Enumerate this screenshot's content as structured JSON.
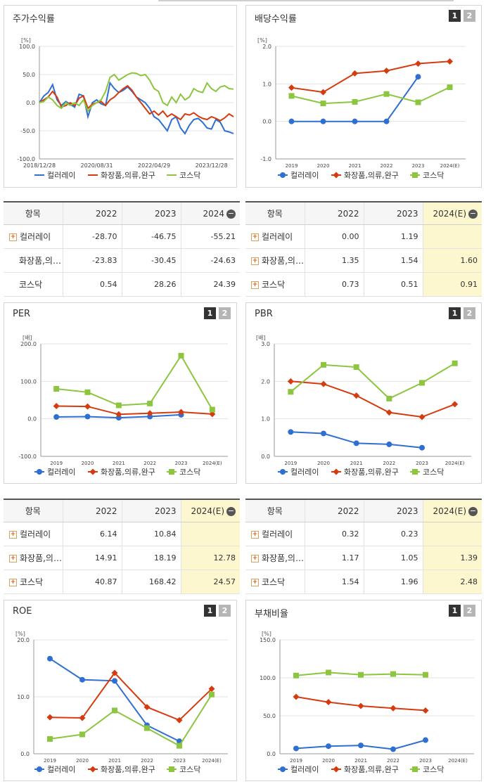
{
  "colors": {
    "s1": "#2e6fd1",
    "s2": "#d63b10",
    "s3": "#8cc63f"
  },
  "legend_names": [
    "컬러레이",
    "화장품,의류,완구",
    "코스닥"
  ],
  "charts": {
    "stock": {
      "title": "주가수익률",
      "unit": "[%]",
      "chart_data": {
        "type": "line",
        "title": "주가수익률",
        "ylabel": "[%]",
        "ylim": [
          -100,
          100
        ],
        "yticks": [
          "100.0",
          "50.0",
          "0.0",
          "-50.0",
          "-100.0"
        ],
        "xticks": [
          "2018/12/28",
          "2020/08/31",
          "2022/04/29",
          "2023/12/28"
        ],
        "series": [
          {
            "name": "컬러레이",
            "values": [
              0,
              12,
              18,
              32,
              5,
              -5,
              2,
              -3,
              -8,
              15,
              12,
              -25,
              0,
              5,
              -2,
              -5,
              35,
              25,
              18,
              22,
              28,
              20,
              10,
              5,
              0,
              -10,
              -25,
              -30,
              -40,
              -50,
              -30,
              -25,
              -45,
              -55,
              -40,
              -30,
              -28,
              -35,
              -45,
              -47,
              -30,
              -35,
              -50,
              -52,
              -55
            ]
          },
          {
            "name": "화장품,의류,완구",
            "values": [
              0,
              5,
              10,
              20,
              10,
              -8,
              -5,
              0,
              -5,
              8,
              12,
              -10,
              -3,
              0,
              2,
              -5,
              5,
              10,
              18,
              25,
              30,
              22,
              10,
              0,
              -10,
              -20,
              -15,
              -22,
              -15,
              -25,
              -20,
              -25,
              -30,
              -20,
              -22,
              -18,
              -24,
              -28,
              -30,
              -25,
              -28,
              -32,
              -27,
              -20,
              -25
            ]
          },
          {
            "name": "코스닥",
            "values": [
              0,
              2,
              10,
              5,
              -5,
              -10,
              0,
              -5,
              0,
              -5,
              5,
              -15,
              -5,
              0,
              5,
              20,
              45,
              50,
              40,
              45,
              50,
              53,
              52,
              48,
              50,
              40,
              25,
              20,
              0,
              -5,
              10,
              0,
              15,
              5,
              10,
              25,
              20,
              18,
              35,
              25,
              20,
              28,
              30,
              25,
              24
            ]
          }
        ]
      }
    },
    "dividend": {
      "title": "배당수익률",
      "unit": "[%]",
      "chart_data": {
        "type": "line",
        "title": "배당수익률",
        "ylabel": "[%]",
        "ylim": [
          -1,
          2
        ],
        "yticks": [
          "2.0",
          "1.0",
          "0.0",
          "-1.0"
        ],
        "categories": [
          "2019",
          "2020",
          "2021",
          "2022",
          "2023",
          "2024(E)"
        ],
        "series": [
          {
            "name": "컬러레이",
            "values": [
              0.0,
              0.0,
              0.0,
              0.0,
              1.19,
              null
            ]
          },
          {
            "name": "화장품,의류,완구",
            "values": [
              0.9,
              0.78,
              1.28,
              1.35,
              1.54,
              1.6
            ]
          },
          {
            "name": "코스닥",
            "values": [
              0.68,
              0.48,
              0.52,
              0.73,
              0.51,
              0.91
            ]
          }
        ]
      }
    },
    "per": {
      "title": "PER",
      "unit": "[배]",
      "chart_data": {
        "type": "line",
        "title": "PER",
        "ylabel": "[배]",
        "ylim": [
          -100,
          200
        ],
        "yticks": [
          "200.0",
          "100.0",
          "0.0",
          "-100.0"
        ],
        "categories": [
          "2019",
          "2020",
          "2021",
          "2022",
          "2023",
          "2024(E)"
        ],
        "series": [
          {
            "name": "컬러레이",
            "values": [
              5,
              6,
              3,
              6.14,
              10.84,
              null
            ]
          },
          {
            "name": "화장품,의류,완구",
            "values": [
              34,
              33,
              12,
              14.91,
              18.19,
              12.78
            ]
          },
          {
            "name": "코스닥",
            "values": [
              80,
              71,
              36,
              40.87,
              168.42,
              24.57
            ]
          }
        ]
      }
    },
    "pbr": {
      "title": "PBR",
      "unit": "[배]",
      "chart_data": {
        "type": "line",
        "title": "PBR",
        "ylabel": "[배]",
        "ylim": [
          0,
          3
        ],
        "yticks": [
          "3.0",
          "2.0",
          "1.0",
          "0.0"
        ],
        "categories": [
          "2019",
          "2020",
          "2021",
          "2022",
          "2023",
          "2024(E)"
        ],
        "series": [
          {
            "name": "컬러레이",
            "values": [
              0.65,
              0.61,
              0.35,
              0.32,
              0.23,
              null
            ]
          },
          {
            "name": "화장품,의류,완구",
            "values": [
              2.0,
              1.93,
              1.62,
              1.17,
              1.05,
              1.39
            ]
          },
          {
            "name": "코스닥",
            "values": [
              1.72,
              2.44,
              2.38,
              1.54,
              1.96,
              2.48
            ]
          }
        ]
      }
    },
    "roe": {
      "title": "ROE",
      "unit": "[%]",
      "chart_data": {
        "type": "line",
        "title": "ROE",
        "ylabel": "[%]",
        "ylim": [
          0,
          20
        ],
        "yticks": [
          "20.0",
          "10.0",
          "0.0"
        ],
        "categories": [
          "2019",
          "2020",
          "2021",
          "2022",
          "2023",
          "2024(E)"
        ],
        "series": [
          {
            "name": "컬러레이",
            "values": [
              16.7,
              13.0,
              12.8,
              5.0,
              2.2,
              null
            ]
          },
          {
            "name": "화장품,의류,완구",
            "values": [
              6.4,
              6.3,
              14.2,
              8.2,
              5.9,
              11.4
            ]
          },
          {
            "name": "코스닥",
            "values": [
              2.6,
              3.4,
              7.6,
              4.5,
              1.4,
              10.4
            ]
          }
        ]
      }
    },
    "debt": {
      "title": "부채비율",
      "unit": "[%]",
      "chart_data": {
        "type": "line",
        "title": "부채비율",
        "ylabel": "[%]",
        "ylim": [
          0,
          150
        ],
        "yticks": [
          "150.0",
          "100.0",
          "50.0",
          "0.0"
        ],
        "categories": [
          "2019",
          "2020",
          "2021",
          "2022",
          "2023",
          "2024(E)"
        ],
        "series": [
          {
            "name": "컬러레이",
            "values": [
              7,
              10,
              11,
              6,
              18,
              null
            ]
          },
          {
            "name": "화장품,의류,완구",
            "values": [
              75,
              68,
              63,
              60,
              57,
              null
            ]
          },
          {
            "name": "코스닥",
            "values": [
              103,
              107,
              104,
              105,
              104,
              null
            ]
          }
        ]
      }
    }
  },
  "tables": {
    "stock": {
      "headers": [
        "항목",
        "2022",
        "2023",
        "2024"
      ],
      "rows": [
        {
          "name": "컬러레이",
          "plus": true,
          "v": [
            "-28.70",
            "-46.75",
            "-55.21"
          ]
        },
        {
          "name": "화장품,의류,완구",
          "display": "화장품,의…",
          "plus": false,
          "v": [
            "-23.83",
            "-30.45",
            "-24.63"
          ]
        },
        {
          "name": "코스닥",
          "plus": false,
          "v": [
            "0.54",
            "28.26",
            "24.39"
          ]
        }
      ]
    },
    "dividend": {
      "headers": [
        "항목",
        "2022",
        "2023",
        "2024(E)"
      ],
      "rows": [
        {
          "name": "컬러레이",
          "plus": true,
          "v": [
            "0.00",
            "1.19",
            ""
          ]
        },
        {
          "name": "화장품,의류,완구",
          "display": "화장품,의…",
          "plus": true,
          "v": [
            "1.35",
            "1.54",
            "1.60"
          ]
        },
        {
          "name": "코스닥",
          "plus": true,
          "v": [
            "0.73",
            "0.51",
            "0.91"
          ]
        }
      ]
    },
    "per": {
      "headers": [
        "항목",
        "2022",
        "2023",
        "2024(E)"
      ],
      "rows": [
        {
          "name": "컬러레이",
          "plus": true,
          "v": [
            "6.14",
            "10.84",
            ""
          ]
        },
        {
          "name": "화장품,의류,완구",
          "display": "화장품,의…",
          "plus": true,
          "v": [
            "14.91",
            "18.19",
            "12.78"
          ]
        },
        {
          "name": "코스닥",
          "plus": true,
          "v": [
            "40.87",
            "168.42",
            "24.57"
          ]
        }
      ]
    },
    "pbr": {
      "headers": [
        "항목",
        "2022",
        "2023",
        "2024(E)"
      ],
      "rows": [
        {
          "name": "컬러레이",
          "plus": true,
          "v": [
            "0.32",
            "0.23",
            ""
          ]
        },
        {
          "name": "화장품,의류,완구",
          "display": "화장품,의…",
          "plus": true,
          "v": [
            "1.17",
            "1.05",
            "1.39"
          ]
        },
        {
          "name": "코스닥",
          "plus": true,
          "v": [
            "1.54",
            "1.96",
            "2.48"
          ]
        }
      ]
    }
  },
  "buttons": {
    "one": "1",
    "two": "2",
    "collapse": "−",
    "expand": "+"
  }
}
